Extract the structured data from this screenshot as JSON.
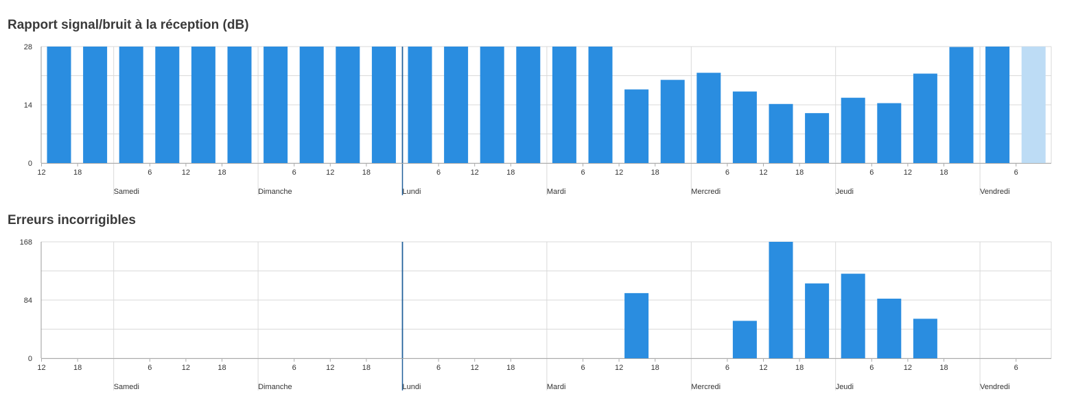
{
  "chart_data": [
    {
      "type": "bar",
      "title": "Rapport signal/bruit à la réception (dB)",
      "ylim": [
        0,
        28
      ],
      "yticks": [
        0,
        14,
        28
      ],
      "x_tick_labels": [
        "12",
        "18",
        "6",
        "12",
        "18",
        "6",
        "12",
        "18",
        "6",
        "12",
        "18",
        "6",
        "12",
        "18",
        "6",
        "12",
        "18",
        "6",
        "12",
        "18",
        "6"
      ],
      "day_labels": [
        "Samedi",
        "Dimanche",
        "Lundi",
        "Mardi",
        "Mercredi",
        "Jeudi",
        "Vendredi"
      ],
      "values": [
        28,
        28,
        28,
        28,
        28,
        28,
        28,
        28,
        28,
        28,
        28,
        28,
        28,
        28,
        28,
        28,
        17.7,
        20,
        21.7,
        17.2,
        14.2,
        12,
        15.7,
        14.4,
        21.5,
        27.9,
        28,
        28
      ],
      "highlight_last": true,
      "colors": {
        "bar": "#2a8de0",
        "bar_light": "#bddcf5",
        "grid": "#d9d9d9",
        "marker": "#1f5f99"
      },
      "grid": true
    },
    {
      "type": "bar",
      "title": "Erreurs incorrigibles",
      "ylim": [
        0,
        168
      ],
      "yticks": [
        0,
        84,
        168
      ],
      "x_tick_labels": [
        "12",
        "18",
        "6",
        "12",
        "18",
        "6",
        "12",
        "18",
        "6",
        "12",
        "18",
        "6",
        "12",
        "18",
        "6",
        "12",
        "18",
        "6",
        "12",
        "18",
        "6"
      ],
      "day_labels": [
        "Samedi",
        "Dimanche",
        "Lundi",
        "Mardi",
        "Mercredi",
        "Jeudi",
        "Vendredi"
      ],
      "values": [
        0,
        0,
        0,
        0,
        0,
        0,
        0,
        0,
        0,
        0,
        0,
        0,
        0,
        0,
        0,
        0,
        94,
        0,
        0,
        54,
        168,
        108,
        122,
        86,
        57,
        0,
        0,
        0
      ],
      "colors": {
        "bar": "#2a8de0",
        "grid": "#d9d9d9",
        "marker": "#1f5f99"
      },
      "grid": true
    }
  ]
}
